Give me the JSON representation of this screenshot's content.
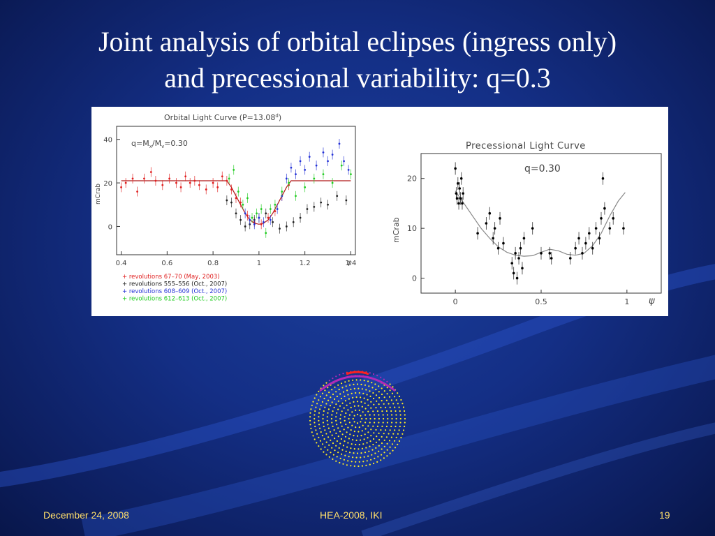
{
  "slide": {
    "title_line1": "Joint analysis of orbital eclipses (ingress only)",
    "title_line2": "and precessional variability: q=0.3",
    "footer_date": "December 24, 2008",
    "footer_conference": "HEA-2008, IKI",
    "footer_page": "19"
  },
  "chart_data": [
    {
      "type": "scatter",
      "title": "Orbital Light Curve (P=13.08",
      "title_superscript": "d",
      "title_close": ")",
      "annotation_base": "q=M",
      "annotation_sub1": "x",
      "annotation_mid": "/M",
      "annotation_sub2": "v",
      "annotation_end": "=0.30",
      "xlabel": "φ",
      "ylabel": "mCrab",
      "xlim": [
        0.38,
        1.42
      ],
      "ylim": [
        -13,
        46
      ],
      "xticks": [
        "0.4",
        "0.6",
        "0.8",
        "1",
        "1.2",
        "1.4"
      ],
      "xtick_values": [
        0.4,
        0.6,
        0.8,
        1.0,
        1.2,
        1.4
      ],
      "yticks": [
        "0",
        "20",
        "40"
      ],
      "ytick_values": [
        0,
        20,
        40
      ],
      "model_curve": {
        "x": [
          0.4,
          0.86,
          0.88,
          0.9,
          0.92,
          0.94,
          0.96,
          0.98,
          1.0,
          1.02,
          1.04,
          1.06,
          1.08,
          1.1,
          1.12,
          1.14,
          1.4
        ],
        "y": [
          21,
          21,
          18,
          14,
          10,
          6,
          3,
          1.5,
          1,
          1.5,
          3,
          6,
          10,
          14,
          18,
          21,
          21
        ]
      },
      "series": [
        {
          "name": "revolutions 67–70 (May, 2003)",
          "color": "#e02020",
          "x": [
            0.4,
            0.42,
            0.45,
            0.47,
            0.5,
            0.53,
            0.55,
            0.58,
            0.61,
            0.64,
            0.66,
            0.68,
            0.7,
            0.72,
            0.74,
            0.77,
            0.8,
            0.82,
            0.84,
            0.86,
            0.88,
            0.9,
            0.92,
            0.95,
            0.98,
            1.01,
            1.04,
            1.07,
            1.1,
            1.13
          ],
          "y": [
            18,
            20,
            22,
            16,
            22,
            25,
            21,
            19,
            22,
            20,
            18,
            23,
            20,
            21,
            19,
            17,
            20,
            18,
            23,
            21,
            17,
            13,
            11,
            5,
            2,
            1,
            4,
            7,
            14,
            19
          ]
        },
        {
          "name": "revolutions 555–556 (Oct., 2007)",
          "color": "#222222",
          "x": [
            0.86,
            0.88,
            0.9,
            0.92,
            0.94,
            0.96,
            0.98,
            1.0,
            1.03,
            1.06,
            1.09,
            1.12,
            1.15,
            1.18,
            1.21,
            1.24,
            1.27,
            1.3,
            1.34,
            1.38
          ],
          "y": [
            12,
            11,
            6,
            3,
            0,
            1,
            3,
            4,
            6,
            2,
            -1,
            0,
            2,
            4,
            8,
            9,
            11,
            10,
            14,
            12
          ]
        },
        {
          "name": "revolutions 608–609 (Oct., 2007)",
          "color": "#2432d6",
          "x": [
            0.94,
            0.96,
            0.98,
            1.0,
            1.02,
            1.05,
            1.08,
            1.1,
            1.12,
            1.14,
            1.16,
            1.18,
            1.2,
            1.22,
            1.25,
            1.28,
            1.3,
            1.32,
            1.35,
            1.37,
            1.39
          ],
          "y": [
            6,
            3,
            1,
            4,
            2,
            3,
            8,
            14,
            22,
            27,
            24,
            30,
            26,
            32,
            28,
            34,
            30,
            33,
            38,
            30,
            26
          ]
        },
        {
          "name": "revolutions 612–613 (Oct., 2007)",
          "color": "#22cc22",
          "x": [
            0.87,
            0.89,
            0.91,
            0.93,
            0.95,
            0.97,
            0.99,
            1.01,
            1.03,
            1.05,
            1.07,
            1.1,
            1.13,
            1.16,
            1.2,
            1.24,
            1.28,
            1.32,
            1.36,
            1.4
          ],
          "y": [
            22,
            26,
            16,
            10,
            13,
            4,
            6,
            8,
            -3,
            8,
            10,
            16,
            20,
            14,
            18,
            22,
            24,
            20,
            28,
            24
          ]
        }
      ]
    },
    {
      "type": "scatter",
      "title": "Precessional Light Curve",
      "annotation": "q=0.30",
      "xlabel": "ψ",
      "ylabel": "mCrab",
      "xlim": [
        -0.2,
        1.2
      ],
      "ylim": [
        -3,
        25
      ],
      "xticks": [
        "0",
        "0.5",
        "1"
      ],
      "xtick_values": [
        0,
        0.5,
        1
      ],
      "yticks": [
        "0",
        "10",
        "20"
      ],
      "ytick_values": [
        0,
        10,
        20
      ],
      "model_curve": {
        "x": [
          0,
          0.05,
          0.1,
          0.15,
          0.2,
          0.25,
          0.3,
          0.35,
          0.4,
          0.45,
          0.5,
          0.55,
          0.6,
          0.65,
          0.7,
          0.75,
          0.8,
          0.85,
          0.9,
          0.95,
          0.99
        ],
        "y": [
          17.5,
          15,
          12.5,
          10,
          8,
          6.3,
          5.2,
          4.6,
          4.4,
          4.5,
          5.2,
          5.8,
          5.5,
          4.8,
          4.6,
          5,
          6.5,
          9,
          12.5,
          15.5,
          17.2
        ]
      },
      "series": [
        {
          "name": "",
          "color": "#000000",
          "x": [
            0.0,
            0.005,
            0.01,
            0.015,
            0.02,
            0.025,
            0.03,
            0.035,
            0.04,
            0.045,
            0.13,
            0.18,
            0.2,
            0.22,
            0.23,
            0.25,
            0.26,
            0.28,
            0.33,
            0.34,
            0.35,
            0.36,
            0.37,
            0.38,
            0.39,
            0.4,
            0.45,
            0.5,
            0.55,
            0.56,
            0.67,
            0.7,
            0.72,
            0.74,
            0.76,
            0.78,
            0.8,
            0.82,
            0.84,
            0.85,
            0.86,
            0.87,
            0.9,
            0.92,
            0.98
          ],
          "y": [
            22,
            17,
            16,
            19,
            15,
            18,
            16,
            20,
            15,
            17,
            9,
            11,
            13,
            8,
            10,
            6,
            12,
            7,
            3,
            1,
            5,
            0,
            4,
            6,
            2,
            8,
            10,
            5,
            5,
            4,
            4,
            6,
            8,
            5,
            7,
            9,
            6,
            10,
            8,
            12,
            20,
            14,
            10,
            12,
            10
          ]
        }
      ]
    }
  ]
}
